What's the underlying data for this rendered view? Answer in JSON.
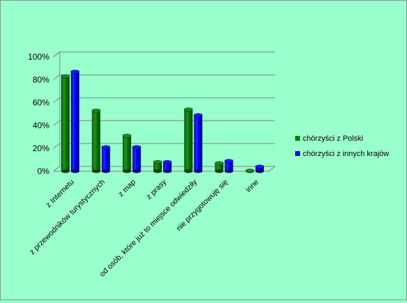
{
  "chart_data": {
    "type": "bar",
    "title": "",
    "xlabel": "",
    "ylabel": "",
    "categories": [
      "z Internetu",
      "z przewodników turystycznych",
      "z map",
      "z prasy",
      "od osób, które już to miejsce odwiedziły",
      "nie przygotowuję się",
      "inne"
    ],
    "series": [
      {
        "name": "chórzyści z Polski",
        "color": "#008000",
        "values": [
          83,
          53,
          31,
          8,
          54,
          7,
          0.5
        ]
      },
      {
        "name": "chórzyści z innych krajów",
        "color": "#0000ff",
        "values": [
          87,
          21,
          21,
          8,
          49,
          9,
          4
        ]
      }
    ],
    "ylim": [
      0,
      100
    ],
    "yticks": [
      0,
      20,
      40,
      60,
      80,
      100
    ],
    "ytick_format": "percent",
    "grid": true,
    "legend_position": "right"
  }
}
